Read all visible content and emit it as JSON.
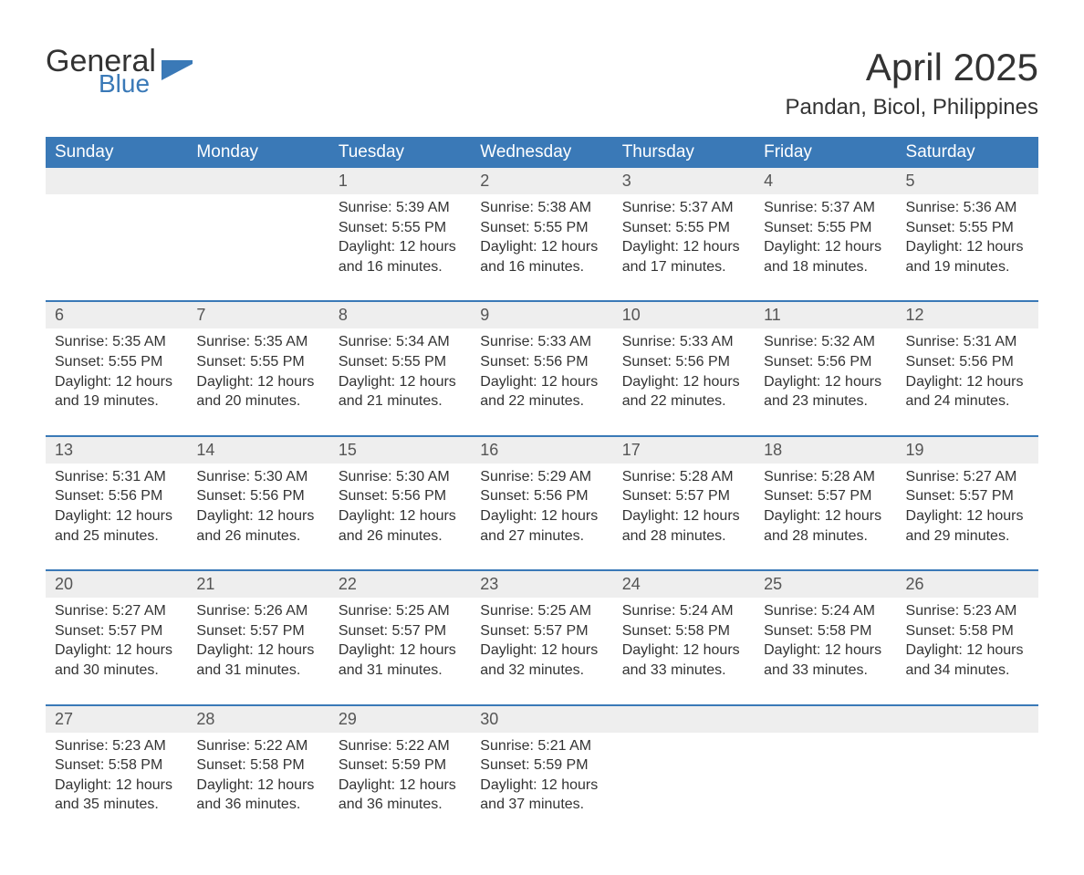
{
  "brand": {
    "general": "General",
    "blue": "Blue",
    "flag_color": "#3a79b7"
  },
  "title": "April 2025",
  "location": "Pandan, Bicol, Philippines",
  "colors": {
    "header_bg": "#3a79b7",
    "header_text": "#ffffff",
    "daynum_bg": "#eeeeee",
    "daynum_text": "#555555",
    "body_text": "#333333",
    "page_bg": "#ffffff",
    "separator": "#3a79b7"
  },
  "typography": {
    "title_fontsize": 42,
    "location_fontsize": 24,
    "header_fontsize": 19,
    "daynum_fontsize": 18,
    "body_fontsize": 16
  },
  "day_headers": [
    "Sunday",
    "Monday",
    "Tuesday",
    "Wednesday",
    "Thursday",
    "Friday",
    "Saturday"
  ],
  "weeks": [
    [
      null,
      null,
      {
        "n": "1",
        "sunrise": "Sunrise: 5:39 AM",
        "sunset": "Sunset: 5:55 PM",
        "dl1": "Daylight: 12 hours",
        "dl2": "and 16 minutes."
      },
      {
        "n": "2",
        "sunrise": "Sunrise: 5:38 AM",
        "sunset": "Sunset: 5:55 PM",
        "dl1": "Daylight: 12 hours",
        "dl2": "and 16 minutes."
      },
      {
        "n": "3",
        "sunrise": "Sunrise: 5:37 AM",
        "sunset": "Sunset: 5:55 PM",
        "dl1": "Daylight: 12 hours",
        "dl2": "and 17 minutes."
      },
      {
        "n": "4",
        "sunrise": "Sunrise: 5:37 AM",
        "sunset": "Sunset: 5:55 PM",
        "dl1": "Daylight: 12 hours",
        "dl2": "and 18 minutes."
      },
      {
        "n": "5",
        "sunrise": "Sunrise: 5:36 AM",
        "sunset": "Sunset: 5:55 PM",
        "dl1": "Daylight: 12 hours",
        "dl2": "and 19 minutes."
      }
    ],
    [
      {
        "n": "6",
        "sunrise": "Sunrise: 5:35 AM",
        "sunset": "Sunset: 5:55 PM",
        "dl1": "Daylight: 12 hours",
        "dl2": "and 19 minutes."
      },
      {
        "n": "7",
        "sunrise": "Sunrise: 5:35 AM",
        "sunset": "Sunset: 5:55 PM",
        "dl1": "Daylight: 12 hours",
        "dl2": "and 20 minutes."
      },
      {
        "n": "8",
        "sunrise": "Sunrise: 5:34 AM",
        "sunset": "Sunset: 5:55 PM",
        "dl1": "Daylight: 12 hours",
        "dl2": "and 21 minutes."
      },
      {
        "n": "9",
        "sunrise": "Sunrise: 5:33 AM",
        "sunset": "Sunset: 5:56 PM",
        "dl1": "Daylight: 12 hours",
        "dl2": "and 22 minutes."
      },
      {
        "n": "10",
        "sunrise": "Sunrise: 5:33 AM",
        "sunset": "Sunset: 5:56 PM",
        "dl1": "Daylight: 12 hours",
        "dl2": "and 22 minutes."
      },
      {
        "n": "11",
        "sunrise": "Sunrise: 5:32 AM",
        "sunset": "Sunset: 5:56 PM",
        "dl1": "Daylight: 12 hours",
        "dl2": "and 23 minutes."
      },
      {
        "n": "12",
        "sunrise": "Sunrise: 5:31 AM",
        "sunset": "Sunset: 5:56 PM",
        "dl1": "Daylight: 12 hours",
        "dl2": "and 24 minutes."
      }
    ],
    [
      {
        "n": "13",
        "sunrise": "Sunrise: 5:31 AM",
        "sunset": "Sunset: 5:56 PM",
        "dl1": "Daylight: 12 hours",
        "dl2": "and 25 minutes."
      },
      {
        "n": "14",
        "sunrise": "Sunrise: 5:30 AM",
        "sunset": "Sunset: 5:56 PM",
        "dl1": "Daylight: 12 hours",
        "dl2": "and 26 minutes."
      },
      {
        "n": "15",
        "sunrise": "Sunrise: 5:30 AM",
        "sunset": "Sunset: 5:56 PM",
        "dl1": "Daylight: 12 hours",
        "dl2": "and 26 minutes."
      },
      {
        "n": "16",
        "sunrise": "Sunrise: 5:29 AM",
        "sunset": "Sunset: 5:56 PM",
        "dl1": "Daylight: 12 hours",
        "dl2": "and 27 minutes."
      },
      {
        "n": "17",
        "sunrise": "Sunrise: 5:28 AM",
        "sunset": "Sunset: 5:57 PM",
        "dl1": "Daylight: 12 hours",
        "dl2": "and 28 minutes."
      },
      {
        "n": "18",
        "sunrise": "Sunrise: 5:28 AM",
        "sunset": "Sunset: 5:57 PM",
        "dl1": "Daylight: 12 hours",
        "dl2": "and 28 minutes."
      },
      {
        "n": "19",
        "sunrise": "Sunrise: 5:27 AM",
        "sunset": "Sunset: 5:57 PM",
        "dl1": "Daylight: 12 hours",
        "dl2": "and 29 minutes."
      }
    ],
    [
      {
        "n": "20",
        "sunrise": "Sunrise: 5:27 AM",
        "sunset": "Sunset: 5:57 PM",
        "dl1": "Daylight: 12 hours",
        "dl2": "and 30 minutes."
      },
      {
        "n": "21",
        "sunrise": "Sunrise: 5:26 AM",
        "sunset": "Sunset: 5:57 PM",
        "dl1": "Daylight: 12 hours",
        "dl2": "and 31 minutes."
      },
      {
        "n": "22",
        "sunrise": "Sunrise: 5:25 AM",
        "sunset": "Sunset: 5:57 PM",
        "dl1": "Daylight: 12 hours",
        "dl2": "and 31 minutes."
      },
      {
        "n": "23",
        "sunrise": "Sunrise: 5:25 AM",
        "sunset": "Sunset: 5:57 PM",
        "dl1": "Daylight: 12 hours",
        "dl2": "and 32 minutes."
      },
      {
        "n": "24",
        "sunrise": "Sunrise: 5:24 AM",
        "sunset": "Sunset: 5:58 PM",
        "dl1": "Daylight: 12 hours",
        "dl2": "and 33 minutes."
      },
      {
        "n": "25",
        "sunrise": "Sunrise: 5:24 AM",
        "sunset": "Sunset: 5:58 PM",
        "dl1": "Daylight: 12 hours",
        "dl2": "and 33 minutes."
      },
      {
        "n": "26",
        "sunrise": "Sunrise: 5:23 AM",
        "sunset": "Sunset: 5:58 PM",
        "dl1": "Daylight: 12 hours",
        "dl2": "and 34 minutes."
      }
    ],
    [
      {
        "n": "27",
        "sunrise": "Sunrise: 5:23 AM",
        "sunset": "Sunset: 5:58 PM",
        "dl1": "Daylight: 12 hours",
        "dl2": "and 35 minutes."
      },
      {
        "n": "28",
        "sunrise": "Sunrise: 5:22 AM",
        "sunset": "Sunset: 5:58 PM",
        "dl1": "Daylight: 12 hours",
        "dl2": "and 36 minutes."
      },
      {
        "n": "29",
        "sunrise": "Sunrise: 5:22 AM",
        "sunset": "Sunset: 5:59 PM",
        "dl1": "Daylight: 12 hours",
        "dl2": "and 36 minutes."
      },
      {
        "n": "30",
        "sunrise": "Sunrise: 5:21 AM",
        "sunset": "Sunset: 5:59 PM",
        "dl1": "Daylight: 12 hours",
        "dl2": "and 37 minutes."
      },
      null,
      null,
      null
    ]
  ]
}
